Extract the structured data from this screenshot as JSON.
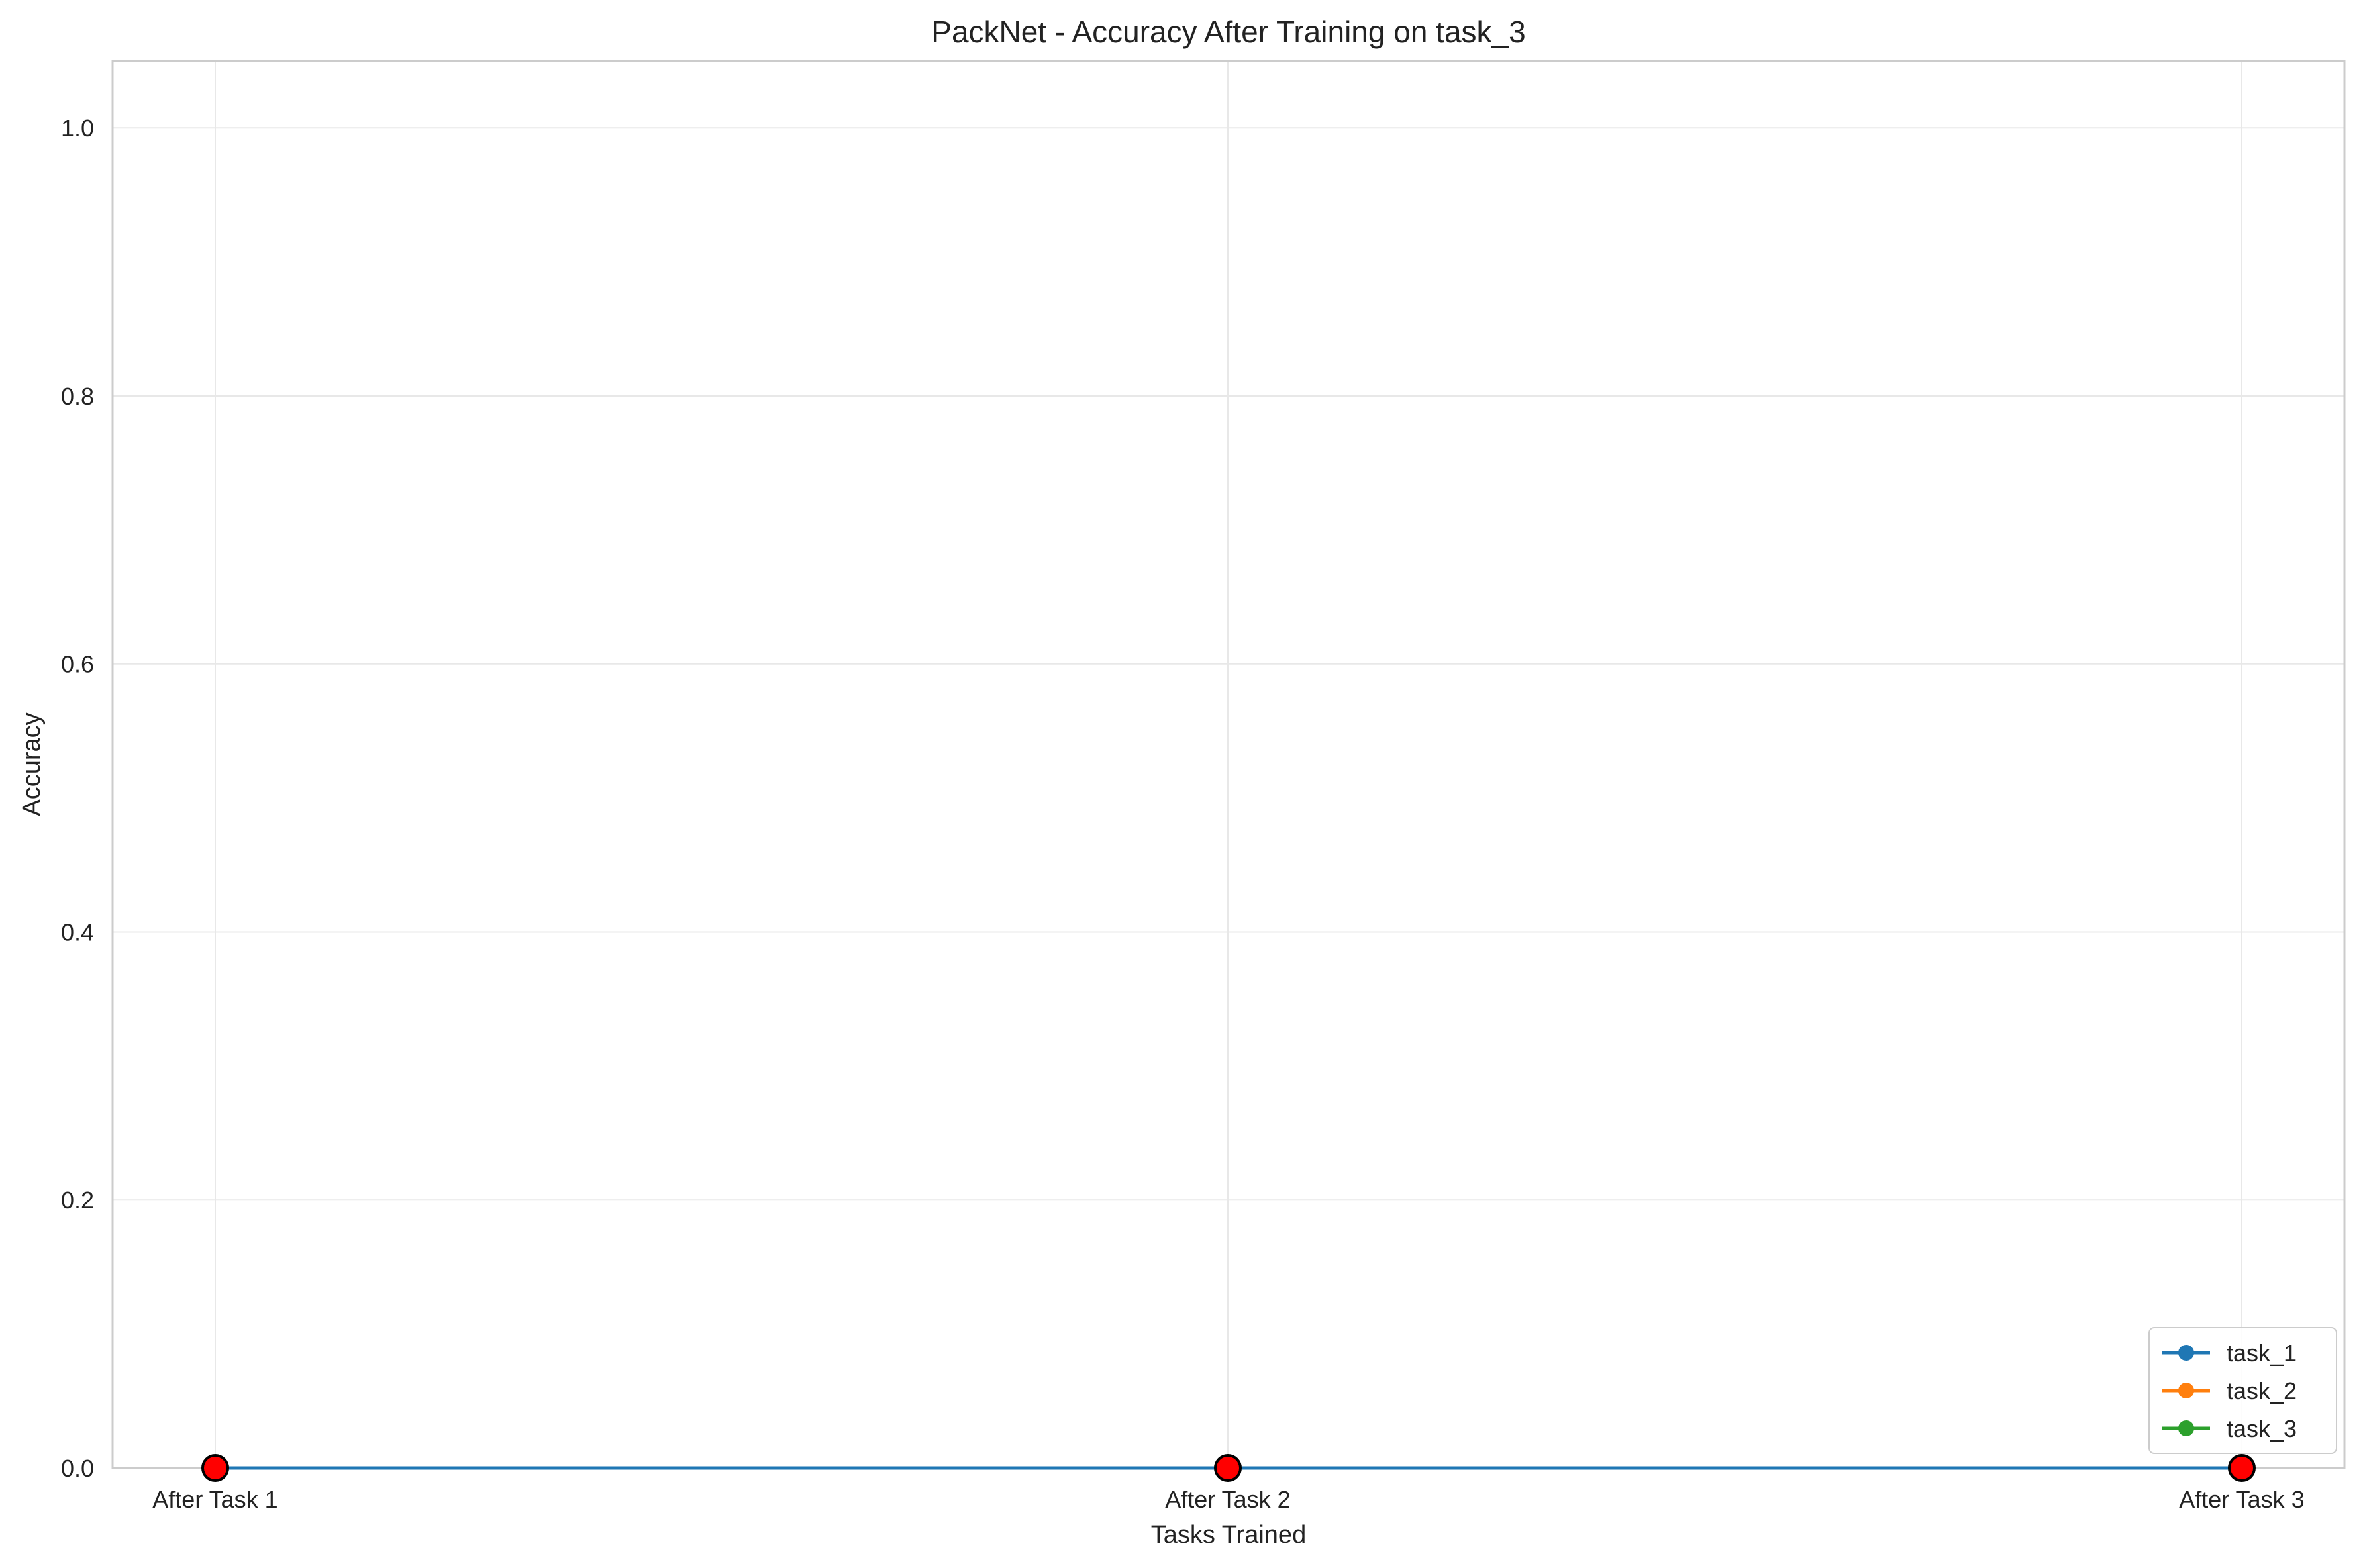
{
  "colors": {
    "grid": "#e8e8e8",
    "spine": "#cccccc",
    "current_task_marker": "#ff0000",
    "marker_edge": "#000000"
  },
  "chart_data": {
    "type": "line",
    "title": "PackNet - Accuracy After Training on task_3",
    "xlabel": "Tasks Trained",
    "ylabel": "Accuracy",
    "categories": [
      "After Task 1",
      "After Task 2",
      "After Task 3"
    ],
    "ylim": [
      0.0,
      1.05
    ],
    "yticks": [
      0.0,
      0.2,
      0.4,
      0.6,
      0.8,
      1.0
    ],
    "ytick_labels": [
      "0.0",
      "0.2",
      "0.4",
      "0.6",
      "0.8",
      "1.0"
    ],
    "grid": true,
    "legend_position": "bottom-right",
    "series": [
      {
        "name": "task_1",
        "color": "#1f77b4",
        "values": [
          0.0,
          0.0,
          0.0
        ]
      },
      {
        "name": "task_2",
        "color": "#ff7f0e",
        "values": [
          null,
          0.0,
          0.0
        ]
      },
      {
        "name": "task_3",
        "color": "#2ca02c",
        "values": [
          null,
          null,
          0.0
        ]
      }
    ],
    "highlighted_points": [
      {
        "category": "After Task 1",
        "value": 0.0
      },
      {
        "category": "After Task 2",
        "value": 0.0
      },
      {
        "category": "After Task 3",
        "value": 0.0
      }
    ]
  }
}
